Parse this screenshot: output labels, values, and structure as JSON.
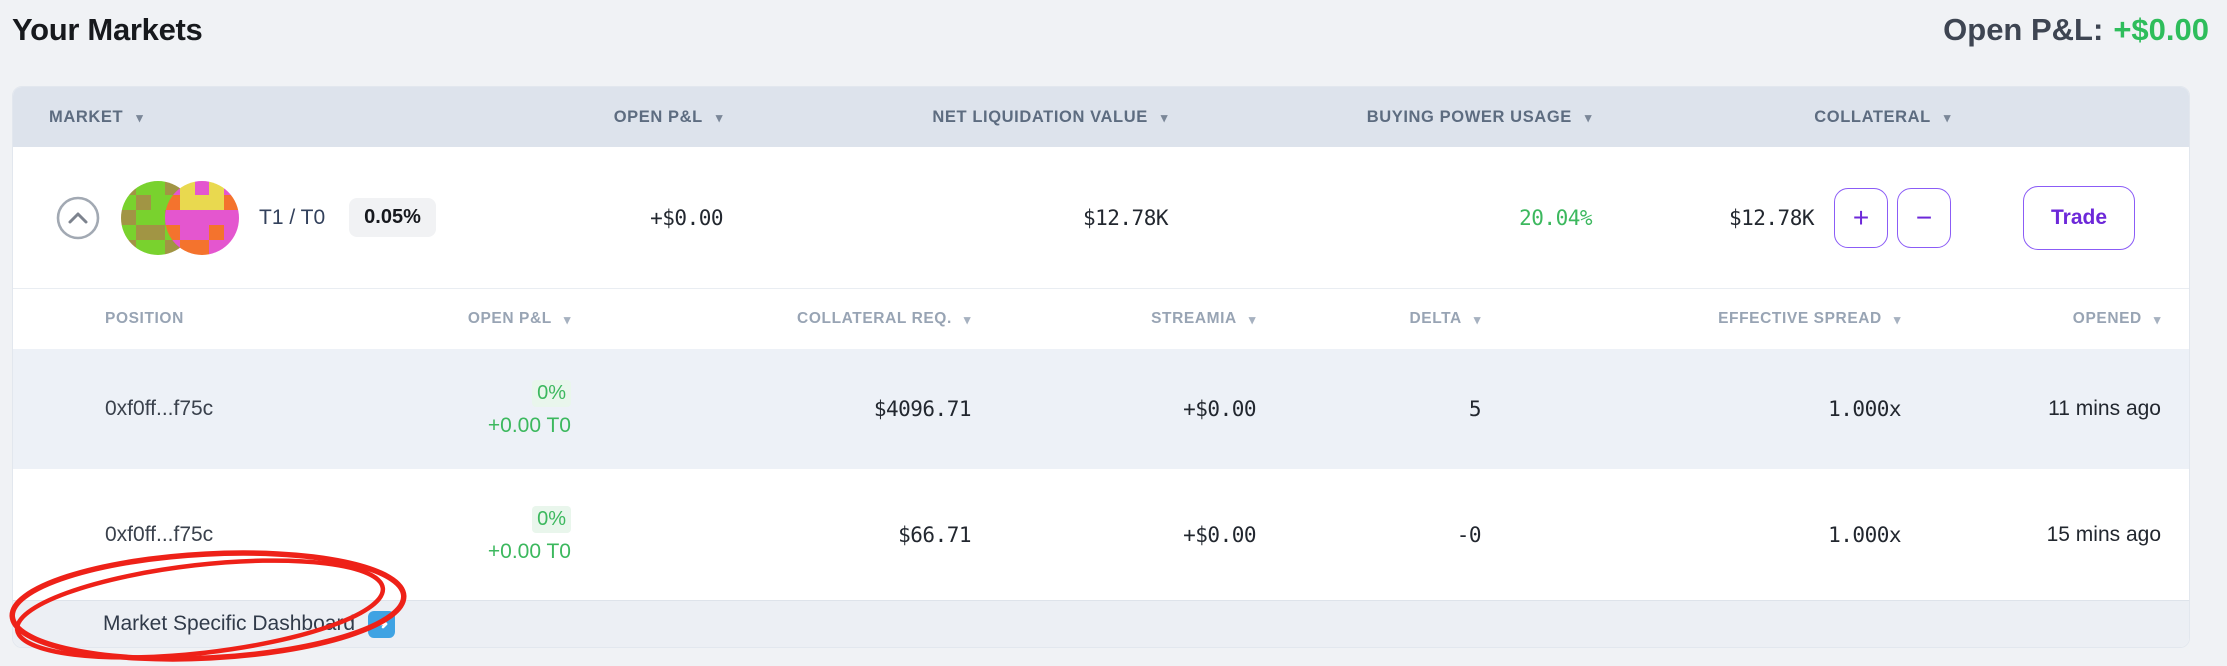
{
  "page": {
    "title": "Your Markets",
    "open_pnl_label": "Open P&L:",
    "open_pnl_value": "+$0.00"
  },
  "icons": {
    "sort_arrow": "▾",
    "arrow_right": "➜",
    "plus": "+",
    "minus": "−"
  },
  "colors": {
    "positive_green": "#3cb85e",
    "summary_green": "#2ebd5b",
    "accent_purple": "#8b5cf6",
    "purple_text": "#6d28d9",
    "header_band": "#dde3ec",
    "row_highlight": "#edf1f7",
    "link_arrow_blue": "#3fa3e3",
    "annotation_red": "#ee2118"
  },
  "markets_table": {
    "headers": {
      "market": "MARKET",
      "open_pnl": "OPEN P&L",
      "net_liquidation_value": "NET LIQUIDATION VALUE",
      "buying_power_usage": "BUYING POWER USAGE",
      "collateral": "COLLATERAL"
    },
    "market_row": {
      "pair": "T1 / T0",
      "fee_badge": "0.05%",
      "open_pnl": "+$0.00",
      "net_liquidation_value": "$12.78K",
      "buying_power_usage": "20.04%",
      "collateral": "$12.78K",
      "trade_label": "Trade"
    }
  },
  "market_icons": {
    "token_t1": {
      "palette": {
        "O": "#a19544",
        "G": "#79d22e"
      },
      "pixels": [
        "OGGOO",
        "GOGGO",
        "OGGOO",
        "GOOGO",
        "OGGOO"
      ]
    },
    "token_t0": {
      "palette": {
        "P": "#e456cf",
        "R": "#f4732d",
        "Y": "#e9d94f"
      },
      "pixels": [
        "PYPYP",
        "RYYYR",
        "PPPPP",
        "RPPRP",
        "PRRPP"
      ]
    }
  },
  "positions_table": {
    "headers": {
      "position": "POSITION",
      "open_pnl": "OPEN P&L",
      "collateral_req": "COLLATERAL REQ.",
      "streamia": "STREAMIA",
      "delta": "DELTA",
      "effective_spread": "EFFECTIVE SPREAD",
      "opened": "OPENED"
    },
    "rows": [
      {
        "position": "0xf0ff...f75c",
        "open_pnl_pct": "0%",
        "open_pnl_amount": "+0.00 T0",
        "collateral_req": "$4096.71",
        "streamia": "+$0.00",
        "delta": "5",
        "effective_spread": "1.000x",
        "opened": "11 mins ago"
      },
      {
        "position": "0xf0ff...f75c",
        "open_pnl_pct": "0%",
        "open_pnl_amount": "+0.00 T0",
        "collateral_req": "$66.71",
        "streamia": "+$0.00",
        "delta": "-0",
        "effective_spread": "1.000x",
        "opened": "15 mins ago"
      }
    ]
  },
  "footer": {
    "dashboard_link": "Market Specific Dashboard"
  }
}
